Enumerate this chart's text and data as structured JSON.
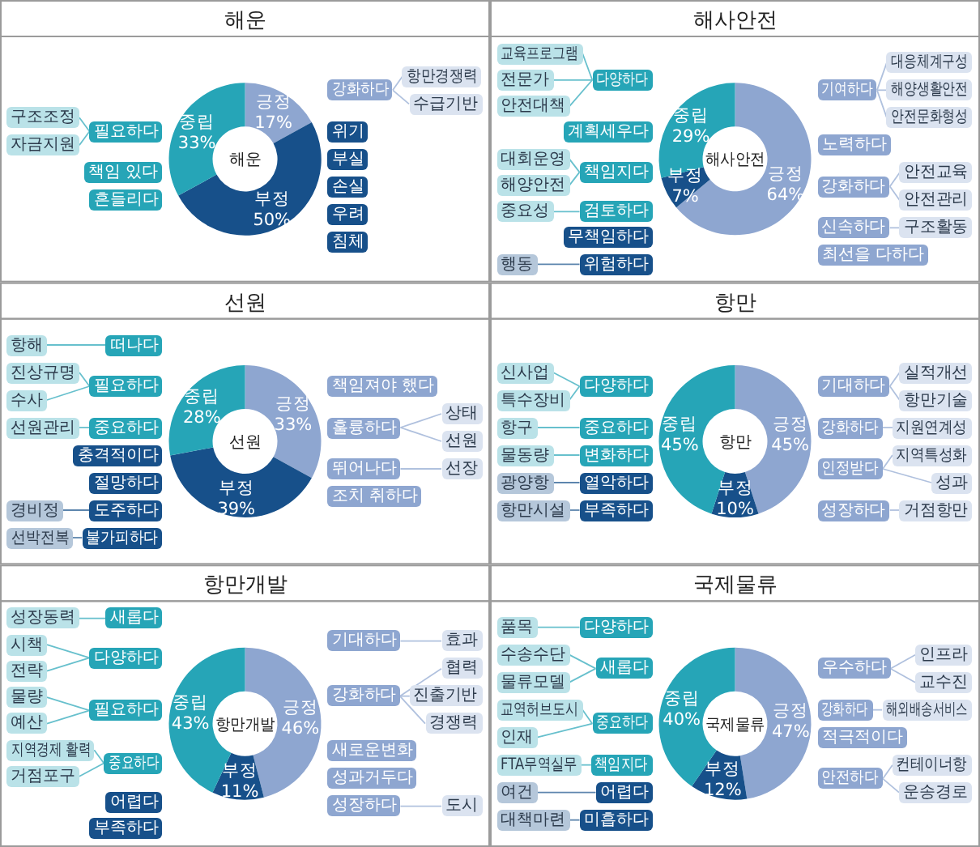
{
  "chart_data": [
    {
      "type": "donut",
      "title": "해운",
      "categories": [
        "긍정",
        "부정",
        "중립"
      ],
      "values": [
        17,
        50,
        33
      ],
      "value_labels": [
        "17%",
        "50%",
        "33%"
      ],
      "colors": [
        "#8ea6d0",
        "#17508a",
        "#26a5b7"
      ],
      "annotations": [
        {
          "text": "필요하다",
          "x": "중립"
        },
        "구조조정",
        "자금지원",
        {
          "text": "책임 있다",
          "x": "중립"
        },
        {
          "text": "흔들리다",
          "x": "중립"
        },
        {
          "text": "강화하다",
          "x": "긍정"
        },
        "항만경쟁력",
        "수급기반",
        {
          "text": "위기",
          "x": "부정"
        },
        {
          "text": "부실",
          "x": "부정"
        },
        {
          "text": "손실",
          "x": "부정"
        },
        {
          "text": "우려",
          "x": "부정"
        },
        {
          "text": "침체",
          "x": "부정"
        }
      ]
    },
    {
      "type": "donut",
      "title": "해사안전",
      "categories": [
        "긍정",
        "부정",
        "중립"
      ],
      "values": [
        64,
        7,
        29
      ],
      "value_labels": [
        "64%",
        "7%",
        "29%"
      ],
      "colors": [
        "#8ea6d0",
        "#17508a",
        "#26a5b7"
      ],
      "annotations": [
        {
          "text": "다양하다",
          "x": "중립"
        },
        "교육프로그램",
        "전문가",
        "안전대책",
        {
          "text": "계획세우다",
          "x": "중립"
        },
        {
          "text": "책임지다",
          "x": "중립"
        },
        "대회운영",
        "해양안전",
        {
          "text": "검토하다",
          "x": "중립"
        },
        "중요성",
        {
          "text": "무책임하다",
          "x": "부정"
        },
        {
          "text": "위험하다",
          "x": "부정"
        },
        "행동",
        {
          "text": "기여하다",
          "x": "긍정"
        },
        "대응체계구성",
        "해양생활안전",
        "안전문화형성",
        {
          "text": "노력하다",
          "x": "긍정"
        },
        {
          "text": "강화하다",
          "x": "긍정"
        },
        "안전교육",
        "안전관리",
        {
          "text": "신속하다",
          "x": "긍정"
        },
        "구조활동",
        {
          "text": "최선을 다하다",
          "x": "긍정"
        }
      ]
    },
    {
      "type": "donut",
      "title": "선원",
      "categories": [
        "긍정",
        "부정",
        "중립"
      ],
      "values": [
        33,
        39,
        28
      ],
      "value_labels": [
        "33%",
        "39%",
        "28%"
      ],
      "colors": [
        "#8ea6d0",
        "#17508a",
        "#26a5b7"
      ],
      "annotations": [
        {
          "text": "떠나다",
          "x": "중립"
        },
        "항해",
        {
          "text": "필요하다",
          "x": "중립"
        },
        "진상규명",
        "수사",
        {
          "text": "중요하다",
          "x": "중립"
        },
        "선원관리",
        {
          "text": "충격적이다",
          "x": "부정"
        },
        {
          "text": "절망하다",
          "x": "부정"
        },
        {
          "text": "도주하다",
          "x": "부정"
        },
        "경비정",
        {
          "text": "불가피하다",
          "x": "부정"
        },
        "선박전복",
        {
          "text": "책임져야 했다",
          "x": "긍정"
        },
        {
          "text": "훌륭하다",
          "x": "긍정"
        },
        "상태",
        "선원",
        {
          "text": "뛰어나다",
          "x": "긍정"
        },
        "선장",
        {
          "text": "조치 취하다",
          "x": "긍정"
        }
      ]
    },
    {
      "type": "donut",
      "title": "항만",
      "categories": [
        "긍정",
        "부정",
        "중립"
      ],
      "values": [
        45,
        10,
        45
      ],
      "value_labels": [
        "45%",
        "10%",
        "45%"
      ],
      "colors": [
        "#8ea6d0",
        "#17508a",
        "#26a5b7"
      ],
      "annotations": [
        {
          "text": "다양하다",
          "x": "중립"
        },
        "신사업",
        "특수장비",
        {
          "text": "중요하다",
          "x": "중립"
        },
        "항구",
        {
          "text": "변화하다",
          "x": "중립"
        },
        "물동량",
        {
          "text": "열악하다",
          "x": "부정"
        },
        "광양항",
        {
          "text": "부족하다",
          "x": "부정"
        },
        "항만시설",
        {
          "text": "기대하다",
          "x": "긍정"
        },
        "실적개선",
        "항만기술",
        {
          "text": "강화하다",
          "x": "긍정"
        },
        "지원연계성",
        {
          "text": "인정받다",
          "x": "긍정"
        },
        "지역특성화",
        "성과",
        {
          "text": "성장하다",
          "x": "긍정"
        },
        "거점항만"
      ]
    },
    {
      "type": "donut",
      "title": "항만개발",
      "categories": [
        "긍정",
        "부정",
        "중립"
      ],
      "values": [
        46,
        11,
        43
      ],
      "value_labels": [
        "46%",
        "11%",
        "43%"
      ],
      "colors": [
        "#8ea6d0",
        "#17508a",
        "#26a5b7"
      ],
      "annotations": [
        {
          "text": "새롭다",
          "x": "중립"
        },
        "성장동력",
        {
          "text": "다양하다",
          "x": "중립"
        },
        "시책",
        "전략",
        {
          "text": "필요하다",
          "x": "중립"
        },
        "물량",
        "예산",
        {
          "text": "중요하다",
          "x": "중립"
        },
        "지역경제 활력",
        "거점포구",
        {
          "text": "기대하다",
          "x": "긍정"
        },
        "효과",
        {
          "text": "강화하다",
          "x": "긍정"
        },
        "협력",
        "진출기반",
        "경쟁력",
        {
          "text": "새로운변화",
          "x": "긍정"
        },
        {
          "text": "성과거두다",
          "x": "긍정"
        },
        {
          "text": "성장하다",
          "x": "긍정"
        },
        "도시",
        {
          "text": "어렵다",
          "x": "부정"
        },
        {
          "text": "부족하다",
          "x": "부정"
        }
      ]
    },
    {
      "type": "donut",
      "title": "국제물류",
      "categories": [
        "긍정",
        "부정",
        "중립"
      ],
      "values": [
        47,
        12,
        40
      ],
      "value_labels": [
        "47%",
        "12%",
        "40%"
      ],
      "colors": [
        "#8ea6d0",
        "#17508a",
        "#26a5b7"
      ],
      "annotations": [
        {
          "text": "다양하다",
          "x": "중립"
        },
        "품목",
        {
          "text": "새롭다",
          "x": "중립"
        },
        "수송수단",
        "물류모델",
        {
          "text": "중요하다",
          "x": "중립"
        },
        "교역허브도시",
        "인재",
        {
          "text": "책임지다",
          "x": "중립"
        },
        "FTA무역실무",
        {
          "text": "어렵다",
          "x": "부정"
        },
        "여건",
        {
          "text": "미흡하다",
          "x": "부정"
        },
        "대책마련",
        {
          "text": "우수하다",
          "x": "긍정"
        },
        "인프라",
        "교수진",
        {
          "text": "강화하다",
          "x": "긍정"
        },
        "해외배송서비스",
        {
          "text": "적극적이다",
          "x": "긍정"
        },
        {
          "text": "안전하다",
          "x": "긍정"
        },
        "컨테이너항",
        "운송경로"
      ]
    }
  ]
}
